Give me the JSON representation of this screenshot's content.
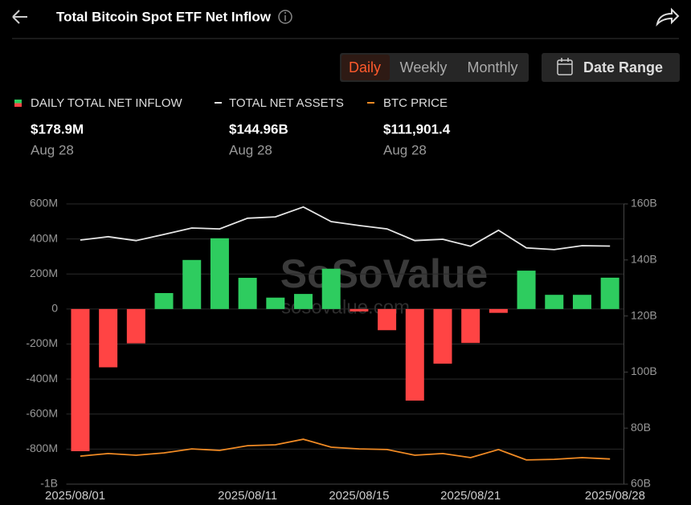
{
  "header": {
    "title": "Total Bitcoin Spot ETF Net Inflow"
  },
  "tabs": [
    "Daily",
    "Weekly",
    "Monthly"
  ],
  "date_range": "Date Range",
  "summary": [
    {
      "value": "$178.9M",
      "date": "Aug 28"
    },
    {
      "value": "$144.96B",
      "date": "Aug 28"
    },
    {
      "value": "$111,901.4",
      "date": "Aug 28"
    }
  ],
  "watermark": [
    "SoSoValue",
    "sosovalue.com"
  ],
  "chart_data": {
    "type": "bar",
    "categories": [
      "2025/08/01",
      null,
      null,
      null,
      null,
      null,
      "2025/08/11",
      null,
      null,
      null,
      "2025/08/15",
      null,
      null,
      null,
      "2025/08/21",
      null,
      null,
      null,
      null,
      "2025/08/28"
    ],
    "series": [
      {
        "name": "DAILY TOTAL NET INFLOW",
        "type": "bar",
        "color": "#2ecc5f",
        "negative_color": "#ff4444",
        "values": [
          -812,
          -333,
          -196,
          91,
          280,
          404,
          178,
          65,
          86,
          230,
          -14,
          -121,
          -523,
          -312,
          -194,
          -22,
          219,
          81,
          81,
          178.9
        ]
      },
      {
        "name": "TOTAL NET ASSETS",
        "type": "line",
        "axis": "y2",
        "color": "#e6e6e6",
        "values": [
          147.1,
          148.3,
          146.9,
          149.1,
          151.4,
          151.1,
          154.9,
          155.4,
          158.9,
          153.7,
          152.3,
          151.1,
          146.9,
          147.4,
          144.9,
          150.6,
          144.3,
          143.7,
          145.1,
          144.96
        ]
      },
      {
        "name": "BTC PRICE",
        "type": "line",
        "axis": "y3",
        "color": "#f08a24",
        "values": [
          113600,
          115100,
          114100,
          115500,
          117900,
          117000,
          119800,
          120300,
          123600,
          118900,
          117900,
          117500,
          114100,
          115100,
          112700,
          117500,
          111300,
          111700,
          112700,
          111901.4
        ]
      }
    ],
    "ylim": [
      -1000,
      600
    ],
    "yticks": [
      {
        "value": -1000,
        "label": "-1B"
      },
      {
        "value": -800,
        "label": "-800M"
      },
      {
        "value": -600,
        "label": "-600M"
      },
      {
        "value": -400,
        "label": "-400M"
      },
      {
        "value": -200,
        "label": "-200M"
      },
      0,
      {
        "value": 200,
        "label": "200M"
      },
      {
        "value": 400,
        "label": "400M"
      },
      {
        "value": 600,
        "label": "600M"
      }
    ],
    "y2lim": [
      60,
      160
    ],
    "y2ticks": [
      {
        "value": 60,
        "label": "60B"
      },
      {
        "value": 80,
        "label": "80B"
      },
      {
        "value": 100,
        "label": "100B"
      },
      {
        "value": 120,
        "label": "120B"
      },
      {
        "value": 140,
        "label": "140B"
      },
      {
        "value": 160,
        "label": "160B"
      }
    ],
    "y3lim": [
      97000,
      263000
    ],
    "grid": true
  }
}
